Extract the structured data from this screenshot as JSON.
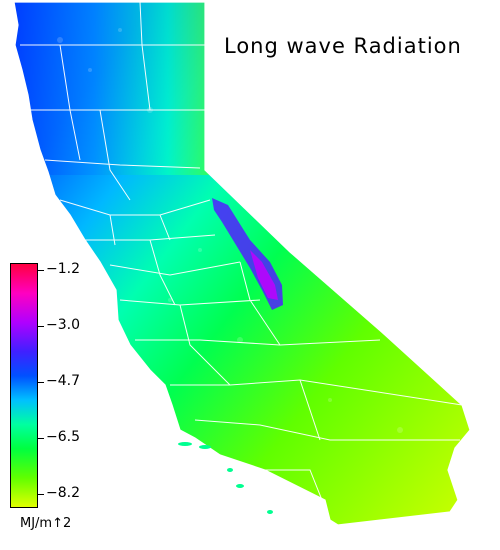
{
  "title": "Long wave Radiation",
  "legend": {
    "ticks": [
      "−1.2",
      "−3.0",
      "−4.7",
      "−6.5",
      "−8.2"
    ],
    "units": "MJ/m↑2"
  },
  "colors": {
    "high": "#ff0040",
    "mid_high": "#4020ff",
    "mid": "#00c0ff",
    "mid_low": "#00ff40",
    "low": "#e0ff00",
    "county_lines": "#ffffff"
  }
}
